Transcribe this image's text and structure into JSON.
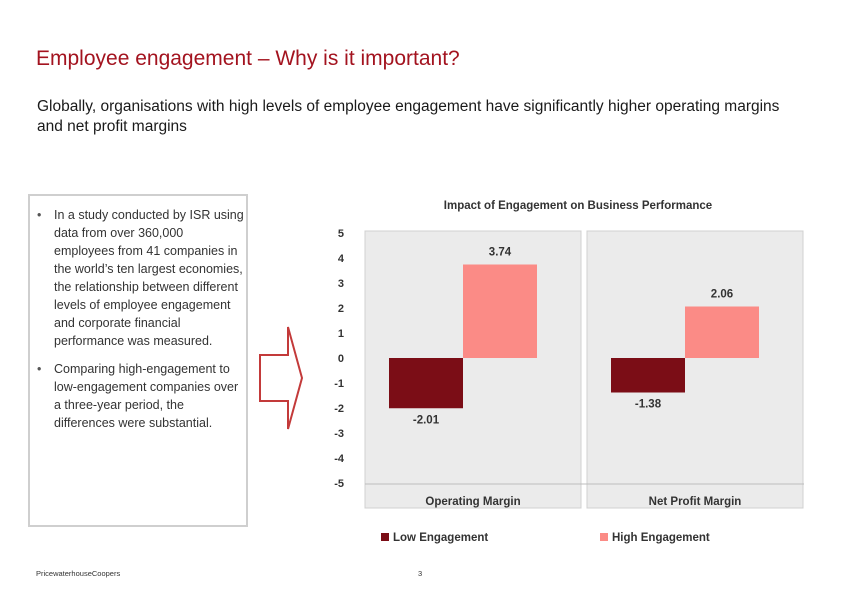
{
  "slide": {
    "title": "Employee engagement – Why is it important?",
    "subtitle": "Globally, organisations with high levels of employee engagement have significantly higher operating margins and net profit margins",
    "bullets": [
      "In a study conducted by ISR using data from over 360,000 employees from 41 companies in the world’s ten largest economies, the relationship between different levels of employee engagement and corporate financial performance was measured.",
      "Comparing high-engagement to low-engagement companies over a three-year period, the differences were substantial."
    ],
    "footer_left": "PricewaterhouseCoopers",
    "page_number": "3"
  },
  "chart_data": {
    "type": "bar",
    "title": "Impact of Engagement on Business Performance",
    "categories": [
      "Operating Margin",
      "Net Profit Margin"
    ],
    "series": [
      {
        "name": "Low Engagement",
        "values": [
          -2.01,
          -1.38
        ],
        "labels": [
          "-2.01",
          "-1.38"
        ],
        "color": "#7b0d16"
      },
      {
        "name": "High Engagement",
        "values": [
          3.74,
          2.06
        ],
        "labels": [
          "3.74",
          "2.06"
        ],
        "color": "#fb8b86"
      }
    ],
    "ylim": [
      -5,
      5
    ],
    "yticks": [
      "5",
      "4",
      "3",
      "2",
      "1",
      "0",
      "-1",
      "-2",
      "-3",
      "-4",
      "-5"
    ],
    "legend_position": "bottom",
    "panel_color": "#ebebeb"
  }
}
